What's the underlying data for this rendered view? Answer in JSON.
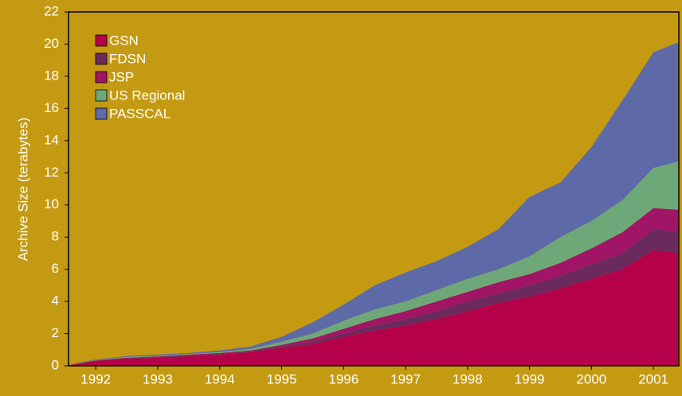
{
  "chart_data": {
    "type": "stacked_area",
    "ylabel": "Archive Size (terabytes)",
    "x": [
      1991.6,
      1992,
      1992.5,
      1993,
      1993.5,
      1994,
      1994.5,
      1995,
      1995.5,
      1996,
      1996.5,
      1997,
      1997.5,
      1998,
      1998.5,
      1999,
      1999.5,
      2000,
      2000.5,
      2001,
      2001.4
    ],
    "xlim": [
      1991.56,
      2001.41
    ],
    "xticks": [
      1992,
      1993,
      1994,
      1995,
      1996,
      1997,
      1998,
      1999,
      2000,
      2001
    ],
    "ylim": [
      0,
      22
    ],
    "yticks": [
      0,
      2,
      4,
      6,
      8,
      10,
      12,
      14,
      16,
      18,
      20,
      22
    ],
    "legend": "upper left",
    "series": [
      {
        "name": "GSN",
        "color": "#b5004a",
        "values": [
          0.05,
          0.3,
          0.45,
          0.5,
          0.6,
          0.7,
          0.85,
          1.1,
          1.35,
          1.8,
          2.2,
          2.5,
          2.9,
          3.4,
          3.9,
          4.3,
          4.8,
          5.4,
          6.0,
          7.2,
          7.0
        ]
      },
      {
        "name": "FDSN",
        "color": "#6b2a5e",
        "values": [
          0,
          0.02,
          0.03,
          0.05,
          0.05,
          0.05,
          0.05,
          0.1,
          0.15,
          0.2,
          0.3,
          0.4,
          0.5,
          0.6,
          0.6,
          0.7,
          0.8,
          0.9,
          1.0,
          1.3,
          1.3
        ]
      },
      {
        "name": "JSP",
        "color": "#a01566",
        "values": [
          0.01,
          0.02,
          0.02,
          0.03,
          0.05,
          0.05,
          0.05,
          0.1,
          0.2,
          0.3,
          0.4,
          0.5,
          0.6,
          0.6,
          0.7,
          0.7,
          0.8,
          1.0,
          1.3,
          1.3,
          1.4
        ]
      },
      {
        "name": "US Regional",
        "color": "#6fa878",
        "values": [
          0.01,
          0.02,
          0.05,
          0.04,
          0.05,
          0.05,
          0.1,
          0.2,
          0.3,
          0.5,
          0.6,
          0.6,
          0.7,
          0.8,
          0.8,
          1.1,
          1.6,
          1.7,
          2.0,
          2.5,
          3.0
        ]
      },
      {
        "name": "PASSCAL",
        "color": "#5e6aa8",
        "values": [
          0.03,
          0.04,
          0.05,
          0.08,
          0.05,
          0.1,
          0.15,
          0.3,
          0.7,
          1.0,
          1.5,
          1.8,
          1.8,
          2.0,
          2.5,
          3.7,
          3.4,
          4.6,
          6.2,
          7.2,
          7.4
        ]
      }
    ]
  }
}
